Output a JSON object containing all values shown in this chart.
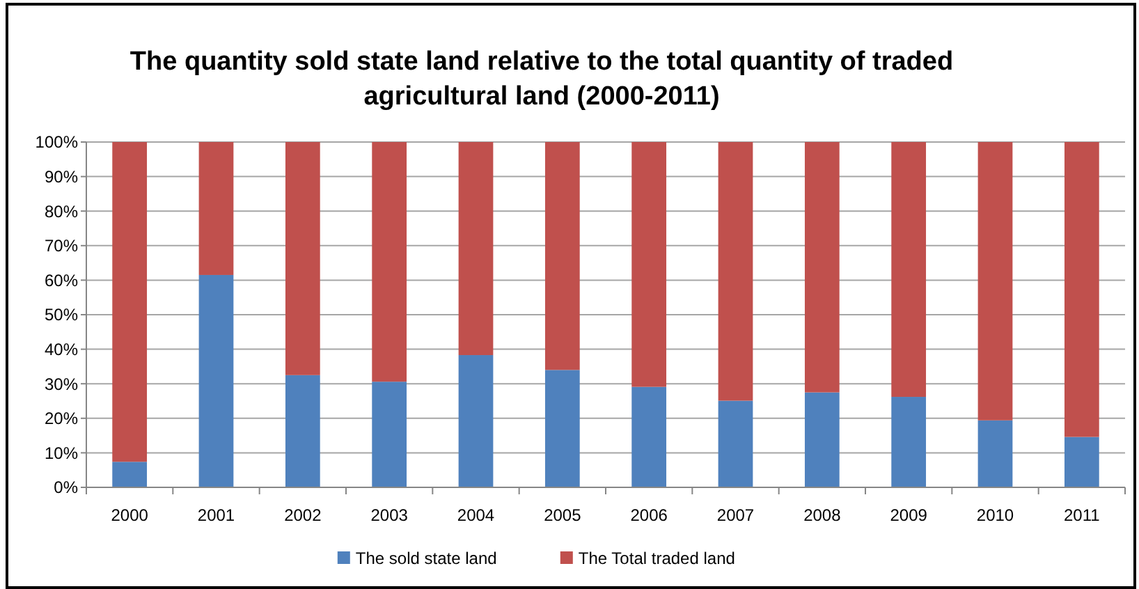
{
  "chart_data": {
    "type": "bar",
    "title": "The quantity sold state land relative to the total quantity of traded agricultural land (2000-2011)",
    "categories": [
      "2000",
      "2001",
      "2002",
      "2003",
      "2004",
      "2005",
      "2006",
      "2007",
      "2008",
      "2009",
      "2010",
      "2011"
    ],
    "series": [
      {
        "name": "The sold state  land",
        "color": "#4f81bd",
        "values": [
          7.4,
          61.5,
          32.5,
          30.6,
          38.3,
          34,
          29.1,
          25.1,
          27.5,
          26.2,
          19.4,
          14.6
        ]
      },
      {
        "name": "The Total  traded land",
        "color": "#c0504d",
        "values": [
          92.6,
          38.5,
          67.5,
          69.4,
          61.7,
          66,
          70.9,
          74.9,
          72.5,
          73.8,
          80.6,
          85.4
        ]
      }
    ],
    "stacked": true,
    "ylim": [
      0,
      100
    ],
    "yticks": [
      {
        "value": 0,
        "label": "0%"
      },
      {
        "value": 10,
        "label": "10%"
      },
      {
        "value": 20,
        "label": "20%"
      },
      {
        "value": 30,
        "label": "30%"
      },
      {
        "value": 40,
        "label": "40%"
      },
      {
        "value": 50,
        "label": "50%"
      },
      {
        "value": 60,
        "label": "60%"
      },
      {
        "value": 70,
        "label": "70%"
      },
      {
        "value": 80,
        "label": "80%"
      },
      {
        "value": 90,
        "label": "90%"
      },
      {
        "value": 100,
        "label": "100%"
      }
    ],
    "grid": "y",
    "legend": "bottom"
  }
}
